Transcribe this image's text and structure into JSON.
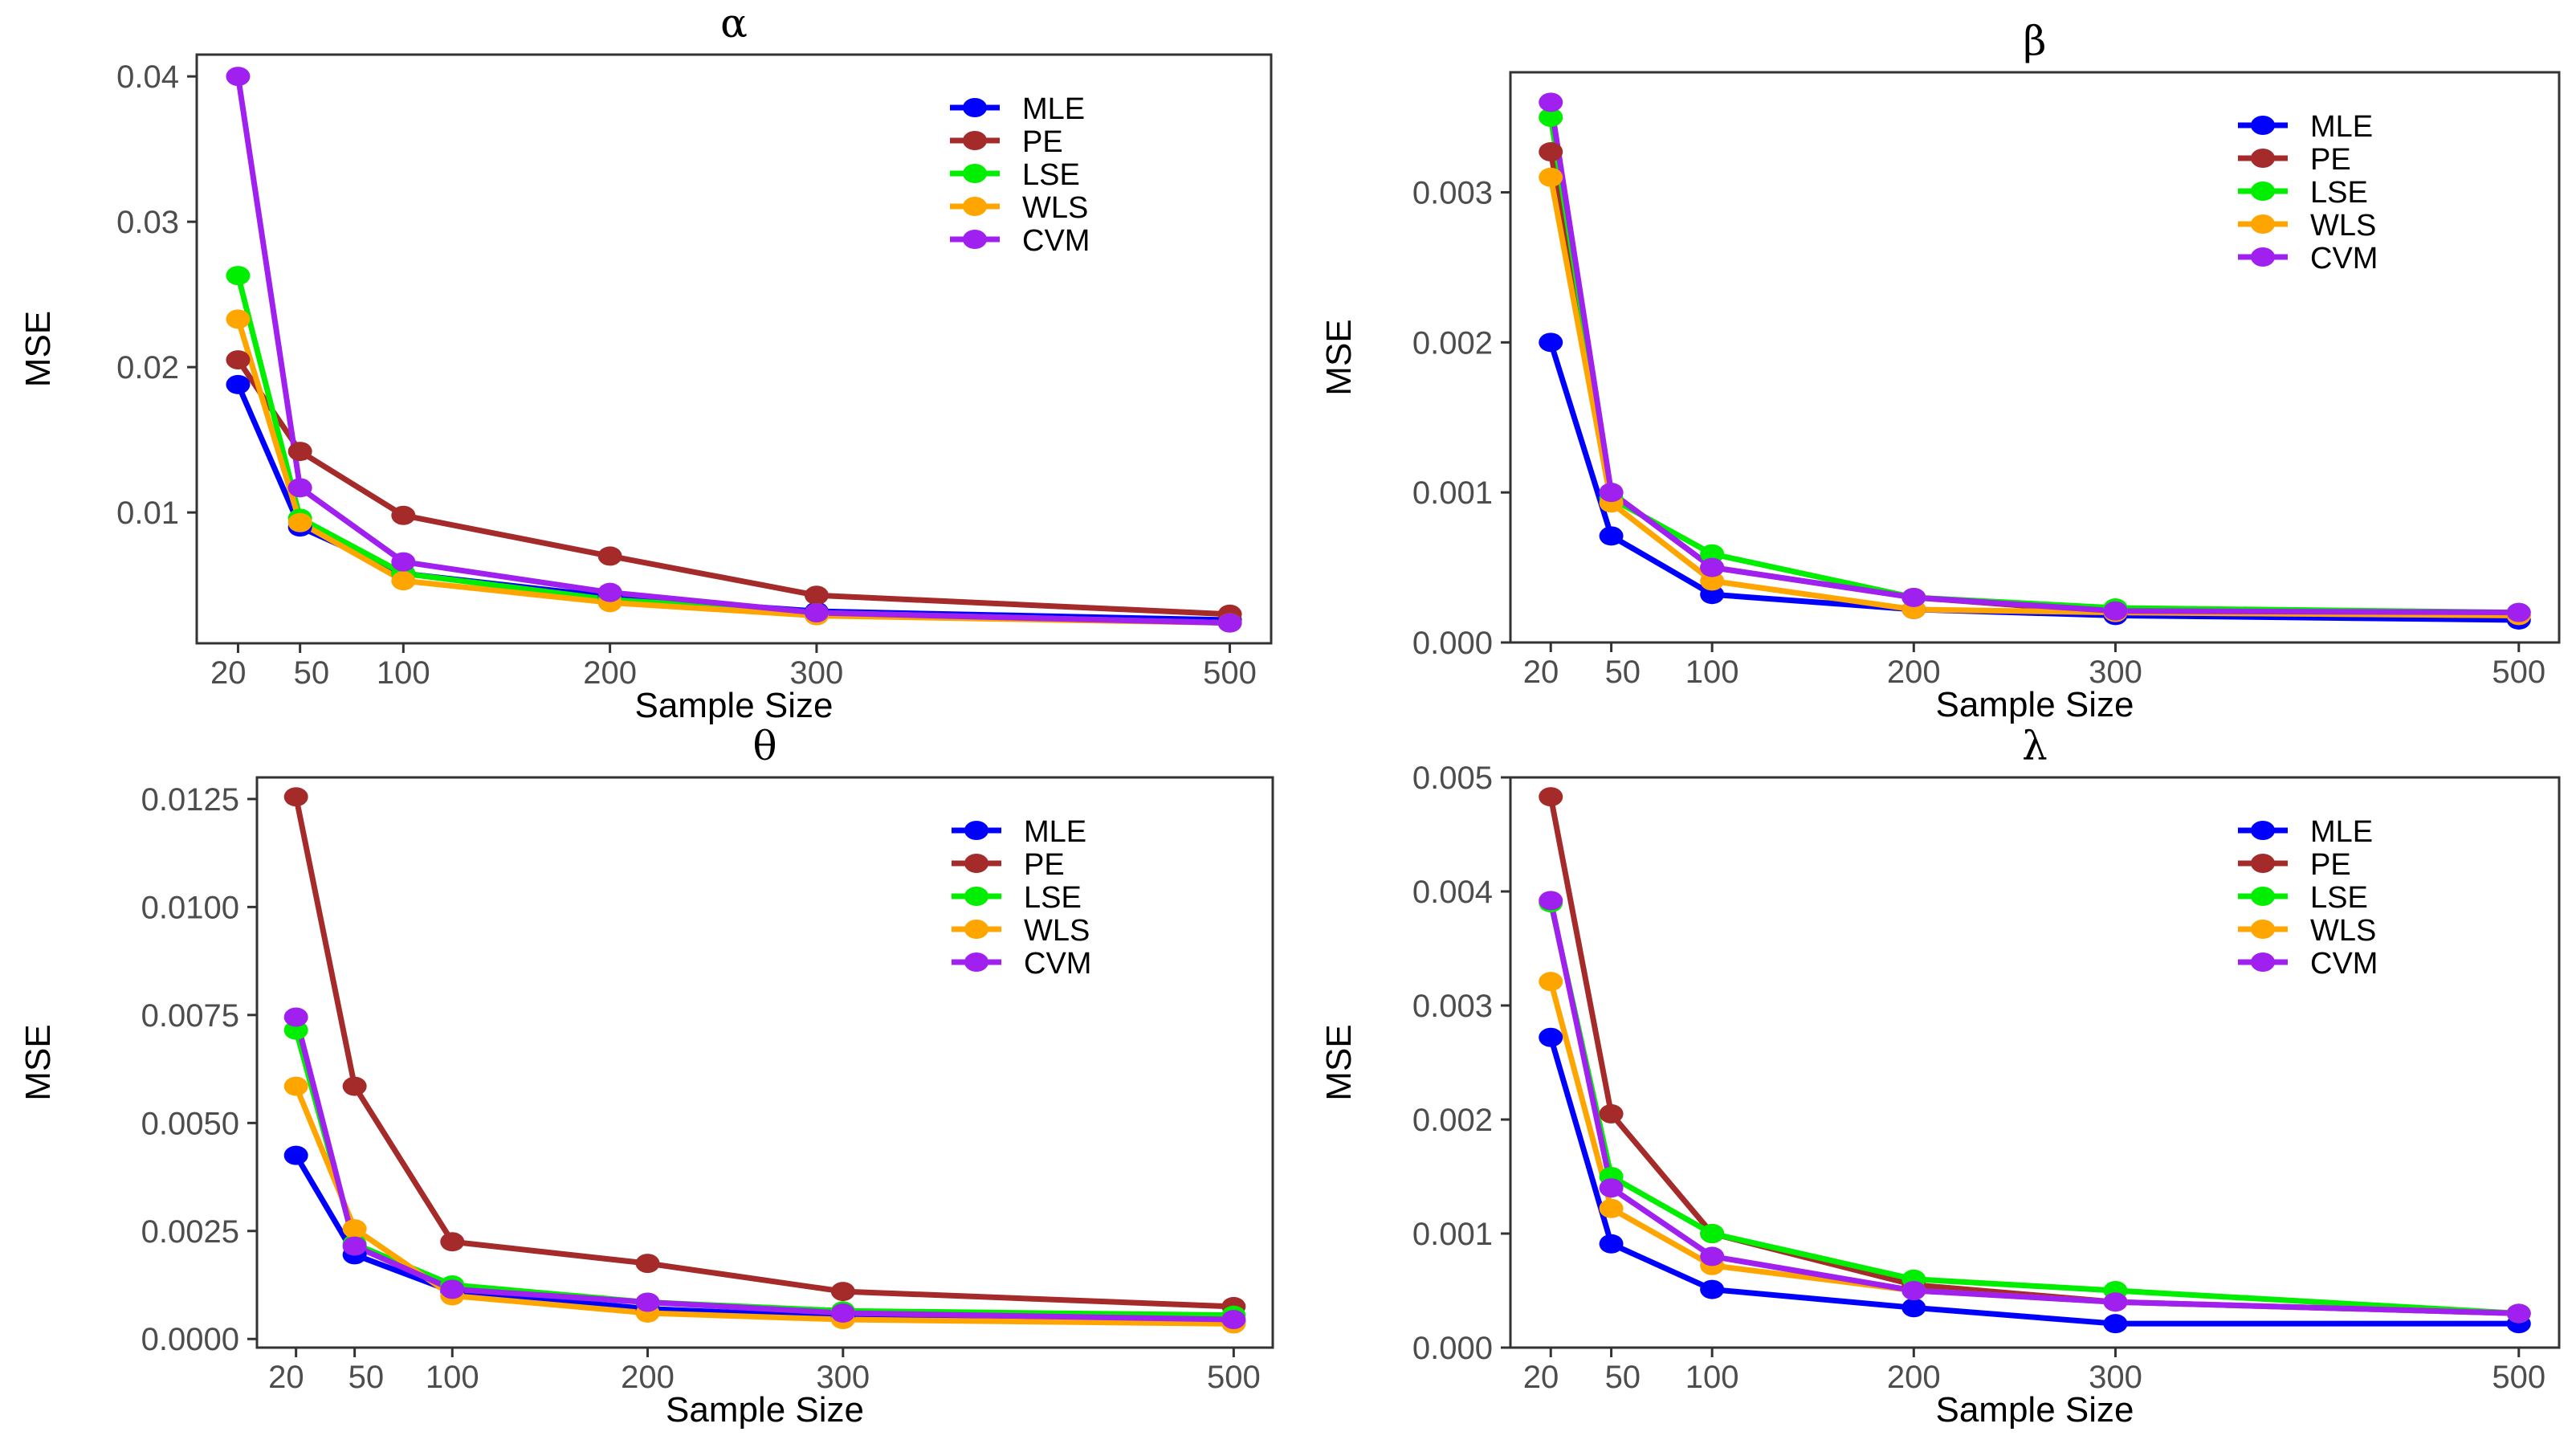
{
  "figure": {
    "shared": {
      "xlabel": "Sample Size",
      "ylabel": "MSE",
      "sample_sizes": [
        20,
        50,
        100,
        200,
        300,
        500
      ],
      "x_tick_labels": [
        "20",
        "50",
        "100",
        "200",
        "300",
        "500"
      ],
      "legend": [
        {
          "name": "MLE",
          "color": "#0000ff"
        },
        {
          "name": "PE",
          "color": "#a52a2a"
        },
        {
          "name": "LSE",
          "color": "#00ee00"
        },
        {
          "name": "WLS",
          "color": "#ffa500"
        },
        {
          "name": "CVM",
          "color": "#a020f0"
        }
      ]
    }
  },
  "chart_data": [
    {
      "type": "line",
      "title": "α",
      "xlabel": "Sample Size",
      "ylabel": "MSE",
      "x": [
        20,
        50,
        100,
        200,
        300,
        500
      ],
      "xlim": [
        0,
        520
      ],
      "ylim": [
        0.001,
        0.0415
      ],
      "yticks": [
        0.01,
        0.02,
        0.03,
        0.04
      ],
      "ytick_labels": [
        "0.01",
        "0.02",
        "0.03",
        "0.04"
      ],
      "legend_position": "top-right",
      "series": [
        {
          "name": "MLE",
          "values": [
            0.0188,
            0.009,
            0.0058,
            0.0042,
            0.0032,
            0.0026
          ]
        },
        {
          "name": "PE",
          "values": [
            0.0205,
            0.0142,
            0.0098,
            0.007,
            0.0043,
            0.003
          ]
        },
        {
          "name": "LSE",
          "values": [
            0.0263,
            0.0096,
            0.0058,
            0.004,
            0.0031,
            0.0024
          ]
        },
        {
          "name": "WLS",
          "values": [
            0.0233,
            0.0093,
            0.0053,
            0.0038,
            0.0029,
            0.0024
          ]
        },
        {
          "name": "CVM",
          "values": [
            0.04,
            0.0117,
            0.0066,
            0.0045,
            0.0031,
            0.0024
          ]
        }
      ]
    },
    {
      "type": "line",
      "title": "β",
      "xlabel": "Sample Size",
      "ylabel": "MSE",
      "x": [
        20,
        50,
        100,
        200,
        300,
        500
      ],
      "xlim": [
        0,
        520
      ],
      "ylim": [
        0.0,
        0.0038
      ],
      "yticks": [
        0.0,
        0.001,
        0.002,
        0.003
      ],
      "ytick_labels": [
        "0.000",
        "0.001",
        "0.002",
        "0.003"
      ],
      "legend_position": "top-right",
      "series": [
        {
          "name": "MLE",
          "values": [
            0.002,
            0.00071,
            0.00032,
            0.00022,
            0.00018,
            0.00015
          ]
        },
        {
          "name": "PE",
          "values": [
            0.00327,
            0.001,
            0.0005,
            0.0003,
            0.0002,
            0.00018
          ]
        },
        {
          "name": "LSE",
          "values": [
            0.0035,
            0.00096,
            0.00059,
            0.0003,
            0.00023,
            0.0002
          ]
        },
        {
          "name": "WLS",
          "values": [
            0.0031,
            0.00093,
            0.00041,
            0.00022,
            0.0002,
            0.00018
          ]
        },
        {
          "name": "CVM",
          "values": [
            0.0036,
            0.001,
            0.0005,
            0.0003,
            0.00021,
            0.0002
          ]
        }
      ]
    },
    {
      "type": "line",
      "title": "θ",
      "xlabel": "Sample Size",
      "ylabel": "MSE",
      "x": [
        20,
        50,
        100,
        200,
        300,
        500
      ],
      "xlim": [
        0,
        520
      ],
      "ylim": [
        -0.0002,
        0.013
      ],
      "yticks": [
        0.0,
        0.0025,
        0.005,
        0.0075,
        0.01,
        0.0125
      ],
      "ytick_labels": [
        "0.0000",
        "0.0025",
        "0.0050",
        "0.0075",
        "0.0100",
        "0.0125"
      ],
      "legend_position": "top-right",
      "series": [
        {
          "name": "MLE",
          "values": [
            0.00425,
            0.00195,
            0.0011,
            0.0007,
            0.0005,
            0.0004
          ]
        },
        {
          "name": "PE",
          "values": [
            0.01255,
            0.00585,
            0.00225,
            0.00175,
            0.0011,
            0.00075
          ]
        },
        {
          "name": "LSE",
          "values": [
            0.00715,
            0.0022,
            0.00125,
            0.00085,
            0.00065,
            0.00055
          ]
        },
        {
          "name": "WLS",
          "values": [
            0.00585,
            0.00255,
            0.001,
            0.0006,
            0.00045,
            0.00035
          ]
        },
        {
          "name": "CVM",
          "values": [
            0.00745,
            0.00215,
            0.00115,
            0.00085,
            0.0006,
            0.00045
          ]
        }
      ]
    },
    {
      "type": "line",
      "title": "λ",
      "xlabel": "Sample Size",
      "ylabel": "MSE",
      "x": [
        20,
        50,
        100,
        200,
        300,
        500
      ],
      "xlim": [
        0,
        520
      ],
      "ylim": [
        0.0,
        0.005
      ],
      "yticks": [
        0.0,
        0.001,
        0.002,
        0.003,
        0.004,
        0.005
      ],
      "ytick_labels": [
        "0.000",
        "0.001",
        "0.002",
        "0.003",
        "0.004",
        "0.005"
      ],
      "legend_position": "top-right",
      "series": [
        {
          "name": "MLE",
          "values": [
            0.00272,
            0.00091,
            0.00051,
            0.00035,
            0.00021,
            0.00021
          ]
        },
        {
          "name": "PE",
          "values": [
            0.00483,
            0.00205,
            0.001,
            0.00055,
            0.0004,
            0.0003
          ]
        },
        {
          "name": "LSE",
          "values": [
            0.0039,
            0.0015,
            0.001,
            0.0006,
            0.0005,
            0.0003
          ]
        },
        {
          "name": "WLS",
          "values": [
            0.00321,
            0.00122,
            0.00072,
            0.0005,
            0.0004,
            0.0003
          ]
        },
        {
          "name": "CVM",
          "values": [
            0.00392,
            0.0014,
            0.0008,
            0.0005,
            0.0004,
            0.0003
          ]
        }
      ]
    }
  ]
}
